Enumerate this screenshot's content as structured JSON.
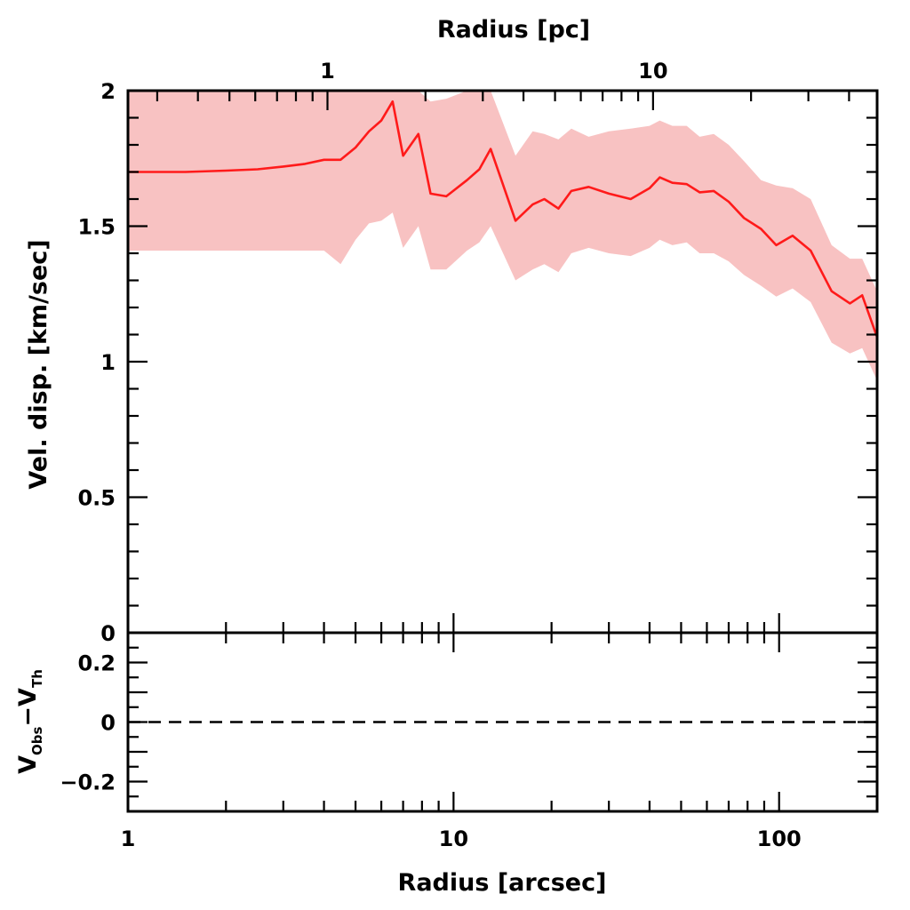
{
  "chart_data": [
    {
      "type": "line",
      "panel": "top",
      "xlabel": "Radius [arcsec]",
      "x2label": "Radius [pc]",
      "ylabel": "Vel. disp. [km/sec]",
      "xscale": "log",
      "xlim": [
        1,
        200
      ],
      "ylim": [
        0,
        2
      ],
      "x_ticks": [
        "1",
        "10",
        "100"
      ],
      "x2_ticks": [
        "1",
        "10"
      ],
      "x2_tick_positions_arcsec": [
        4.1,
        41
      ],
      "y_ticks": [
        "0",
        "0.5",
        "1",
        "1.5",
        "2"
      ],
      "band_color": "#f8c2c2",
      "line_color": "#ff1a1a",
      "series": [
        {
          "x": [
            1,
            1.5,
            2,
            2.5,
            3,
            3.5,
            4,
            4.5,
            5,
            5.5,
            6,
            6.5,
            7,
            7.8,
            8.5,
            9.5,
            11,
            12,
            13,
            15.5,
            17.5,
            19,
            21,
            23,
            26,
            30,
            35,
            40,
            43,
            47,
            52,
            57,
            63,
            70,
            78,
            88,
            98,
            110,
            125,
            145,
            165,
            180,
            200
          ],
          "y": [
            1.7,
            1.7,
            1.705,
            1.71,
            1.72,
            1.73,
            1.745,
            1.745,
            1.79,
            1.85,
            1.89,
            1.96,
            1.76,
            1.84,
            1.62,
            1.61,
            1.67,
            1.71,
            1.785,
            1.52,
            1.58,
            1.6,
            1.565,
            1.63,
            1.645,
            1.62,
            1.6,
            1.64,
            1.68,
            1.66,
            1.655,
            1.625,
            1.63,
            1.59,
            1.53,
            1.49,
            1.43,
            1.465,
            1.41,
            1.26,
            1.215,
            1.245,
            1.09
          ],
          "y_upper": [
            2.0,
            2.0,
            2.0,
            2.0,
            2.0,
            2.0,
            2.0,
            2.0,
            2.0,
            2.0,
            2.0,
            2.0,
            2.0,
            2.0,
            1.96,
            1.97,
            2.0,
            2.0,
            2.0,
            1.76,
            1.85,
            1.84,
            1.82,
            1.86,
            1.83,
            1.85,
            1.86,
            1.87,
            1.89,
            1.87,
            1.87,
            1.83,
            1.84,
            1.8,
            1.74,
            1.67,
            1.65,
            1.64,
            1.6,
            1.43,
            1.38,
            1.38,
            1.26
          ],
          "y_lower": [
            1.41,
            1.41,
            1.41,
            1.41,
            1.41,
            1.41,
            1.41,
            1.36,
            1.45,
            1.51,
            1.52,
            1.55,
            1.42,
            1.5,
            1.34,
            1.34,
            1.41,
            1.44,
            1.5,
            1.3,
            1.34,
            1.36,
            1.33,
            1.4,
            1.42,
            1.4,
            1.39,
            1.42,
            1.45,
            1.43,
            1.44,
            1.4,
            1.4,
            1.37,
            1.32,
            1.28,
            1.24,
            1.27,
            1.22,
            1.07,
            1.03,
            1.05,
            0.93
          ]
        }
      ]
    },
    {
      "type": "line",
      "panel": "bottom",
      "ylabel_main": "V",
      "ylabel_sub1": "Obs",
      "ylabel_minus": "−V",
      "ylabel_sub2": "Th",
      "xscale": "log",
      "xlim": [
        1,
        200
      ],
      "ylim": [
        -0.3,
        0.3
      ],
      "y_ticks": [
        "0.2",
        "0",
        "−0.2"
      ],
      "series": [
        {
          "x": [
            1,
            200
          ],
          "y": [
            0,
            0
          ],
          "style": "dashed"
        }
      ]
    }
  ]
}
